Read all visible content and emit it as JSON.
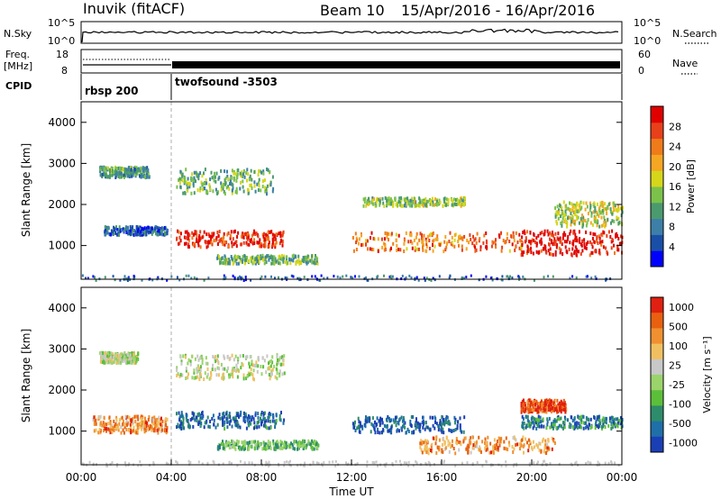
{
  "header": {
    "station": "Inuvik (fitACF)",
    "beam": "Beam 10",
    "date_range": "15/Apr/2016 - 16/Apr/2016"
  },
  "top_panels": {
    "nsky_label": "N.Sky",
    "nsky_ticks": [
      "10^5",
      "10^0"
    ],
    "nsearch_label": "N.Search",
    "nsearch_ticks": [
      "10^5",
      "10^0"
    ],
    "freq_label": "Freq.",
    "freq_unit": "[MHz]",
    "freq_ticks": [
      "18",
      "8"
    ],
    "nave_label": "Nave",
    "nave_ticks": [
      "60",
      "0"
    ],
    "cpid_label": "CPID",
    "cpid_segments": [
      "rbsp 200",
      "twofsound -3503"
    ]
  },
  "colors": {
    "power_scale": [
      "#0000ff",
      "#1a4fa8",
      "#3d7fa8",
      "#4b9a6e",
      "#7bc24a",
      "#d6d61a",
      "#f5a623",
      "#f07b1a",
      "#e8401a",
      "#e00000"
    ],
    "velocity_scale": [
      "#1a3fb5",
      "#1f6fa8",
      "#2e8c6a",
      "#5cbf3a",
      "#9ad46a",
      "#c8c8c8",
      "#f0c060",
      "#f09030",
      "#e86010",
      "#e02010"
    ]
  },
  "chart_data": [
    {
      "type": "heatmap",
      "title": "",
      "xlabel": "",
      "ylabel": "Slant Range [km]",
      "yticks": [
        "1000",
        "2000",
        "3000",
        "4000"
      ],
      "ylim": [
        180,
        4500
      ],
      "colorbar_label": "Power [dB]",
      "colorbar_ticks": [
        "4",
        "8",
        "12",
        "16",
        "20",
        "24",
        "28"
      ],
      "bands": [
        {
          "t0": 0.8,
          "t1": 3.0,
          "r0": 2700,
          "r1": 2950,
          "level": 0.35
        },
        {
          "t0": 1.0,
          "t1": 3.8,
          "r0": 1300,
          "r1": 1500,
          "level": 0.2
        },
        {
          "t0": 4.2,
          "t1": 9.0,
          "r0": 1000,
          "r1": 1400,
          "level": 0.9
        },
        {
          "t0": 4.2,
          "t1": 8.5,
          "r0": 2300,
          "r1": 2900,
          "level": 0.4
        },
        {
          "t0": 6.0,
          "t1": 10.5,
          "r0": 600,
          "r1": 800,
          "level": 0.4
        },
        {
          "t0": 12.0,
          "t1": 20.0,
          "r0": 900,
          "r1": 1350,
          "level": 0.75
        },
        {
          "t0": 12.5,
          "t1": 17.0,
          "r0": 2000,
          "r1": 2200,
          "level": 0.45
        },
        {
          "t0": 19.5,
          "t1": 24.0,
          "r0": 800,
          "r1": 1400,
          "level": 0.95
        },
        {
          "t0": 21.0,
          "t1": 24.0,
          "r0": 1500,
          "r1": 2100,
          "level": 0.5
        }
      ]
    },
    {
      "type": "heatmap",
      "title": "",
      "xlabel": "Time UT",
      "ylabel": "Slant Range [km]",
      "yticks": [
        "1000",
        "2000",
        "3000",
        "4000"
      ],
      "xticks": [
        "00:00",
        "04:00",
        "08:00",
        "12:00",
        "16:00",
        "20:00",
        "00:00"
      ],
      "xlim": [
        0,
        24
      ],
      "ylim": [
        180,
        4500
      ],
      "colorbar_label": "Velocity [m s⁻¹]",
      "colorbar_ticks": [
        "1000",
        "500",
        "100",
        "25",
        "-25",
        "-100",
        "-500",
        "-1000"
      ],
      "bands": [
        {
          "t0": 0.8,
          "t1": 2.5,
          "r0": 2700,
          "r1": 2950,
          "level": 0.5
        },
        {
          "t0": 0.5,
          "t1": 3.8,
          "r0": 1000,
          "r1": 1400,
          "level": 0.75
        },
        {
          "t0": 4.2,
          "t1": 9.0,
          "r0": 1100,
          "r1": 1500,
          "level": 0.15
        },
        {
          "t0": 4.2,
          "t1": 9.0,
          "r0": 2300,
          "r1": 2900,
          "level": 0.5
        },
        {
          "t0": 6.0,
          "t1": 10.5,
          "r0": 600,
          "r1": 800,
          "level": 0.35
        },
        {
          "t0": 12.0,
          "t1": 17.0,
          "r0": 1000,
          "r1": 1400,
          "level": 0.1
        },
        {
          "t0": 15.0,
          "t1": 21.0,
          "r0": 500,
          "r1": 900,
          "level": 0.75
        },
        {
          "t0": 19.5,
          "t1": 24.0,
          "r0": 1100,
          "r1": 1400,
          "level": 0.2
        },
        {
          "t0": 19.5,
          "t1": 21.5,
          "r0": 1500,
          "r1": 1800,
          "level": 0.92
        }
      ]
    }
  ]
}
